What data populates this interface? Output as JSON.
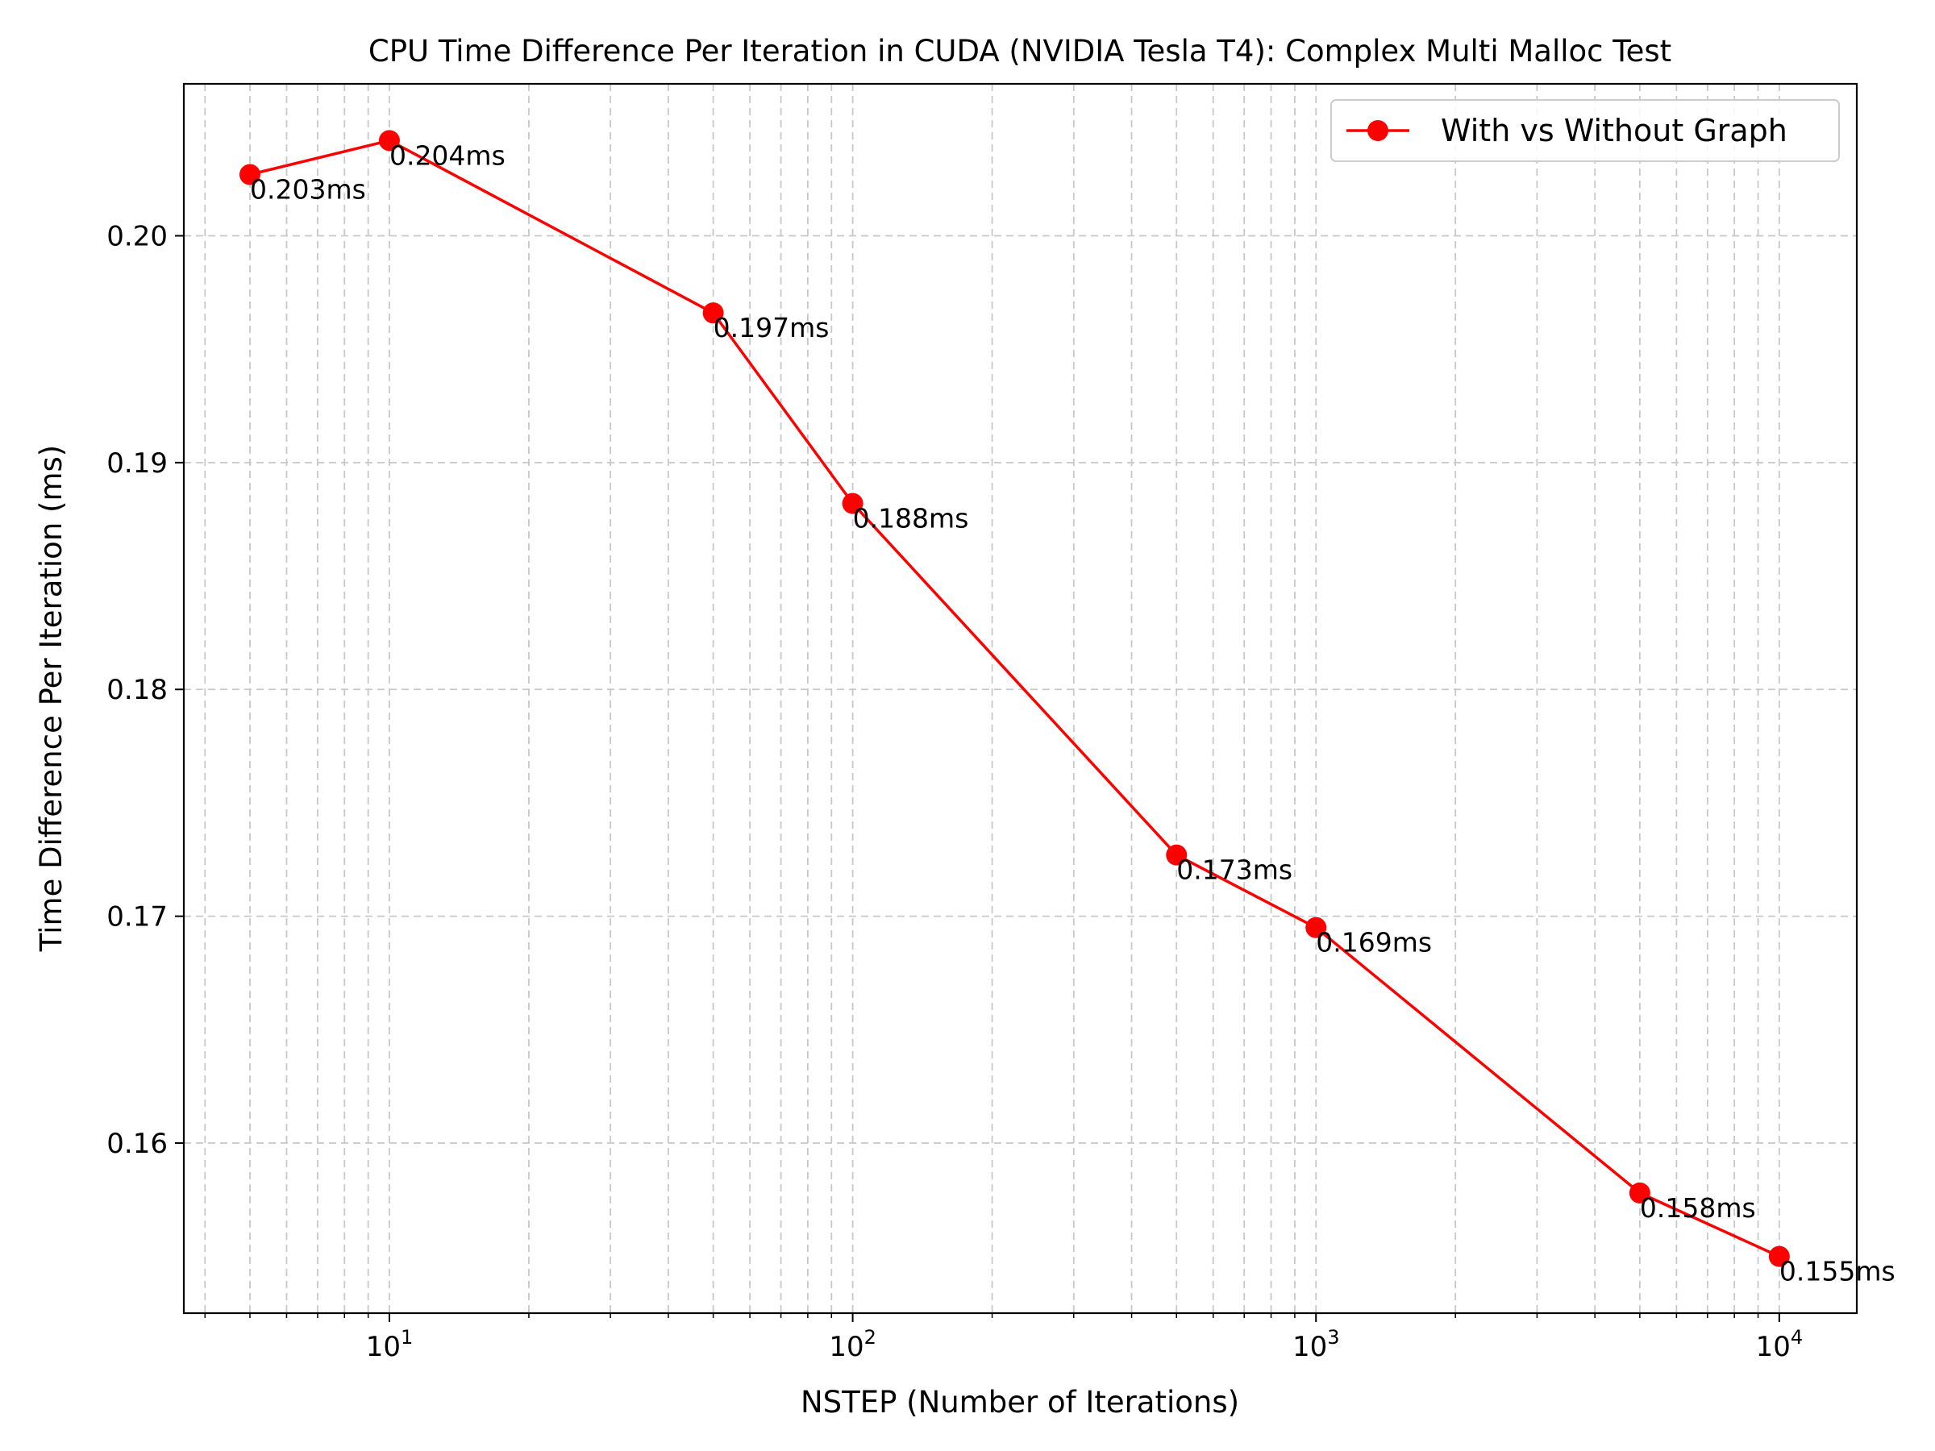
{
  "chart_data": {
    "type": "line",
    "title": "CPU Time Difference Per Iteration in CUDA (NVIDIA Tesla T4): Complex Multi Malloc Test",
    "xlabel": "NSTEP (Number of Iterations)",
    "ylabel": "Time Difference Per Iteration (ms)",
    "x_scale": "log",
    "xlim": [
      3.6,
      14700
    ],
    "ylim": [
      0.1525,
      0.2067
    ],
    "grid": true,
    "legend_position": "top-right",
    "x_ticks": [
      {
        "value": 10,
        "base": "10",
        "exp": "1"
      },
      {
        "value": 100,
        "base": "10",
        "exp": "2"
      },
      {
        "value": 1000,
        "base": "10",
        "exp": "3"
      },
      {
        "value": 10000,
        "base": "10",
        "exp": "4"
      }
    ],
    "y_ticks": [
      {
        "value": 0.16,
        "label": "0.16"
      },
      {
        "value": 0.17,
        "label": "0.17"
      },
      {
        "value": 0.18,
        "label": "0.18"
      },
      {
        "value": 0.19,
        "label": "0.19"
      },
      {
        "value": 0.2,
        "label": "0.20"
      }
    ],
    "series": [
      {
        "name": "With vs Without Graph",
        "color": "#ff0000",
        "points": [
          {
            "x": 5,
            "y": 0.2027,
            "label": "0.203ms"
          },
          {
            "x": 10,
            "y": 0.2042,
            "label": "0.204ms"
          },
          {
            "x": 50,
            "y": 0.1966,
            "label": "0.197ms"
          },
          {
            "x": 100,
            "y": 0.1882,
            "label": "0.188ms"
          },
          {
            "x": 500,
            "y": 0.1727,
            "label": "0.173ms"
          },
          {
            "x": 1000,
            "y": 0.1695,
            "label": "0.169ms"
          },
          {
            "x": 5000,
            "y": 0.1578,
            "label": "0.158ms"
          },
          {
            "x": 10000,
            "y": 0.155,
            "label": "0.155ms"
          }
        ]
      }
    ]
  }
}
